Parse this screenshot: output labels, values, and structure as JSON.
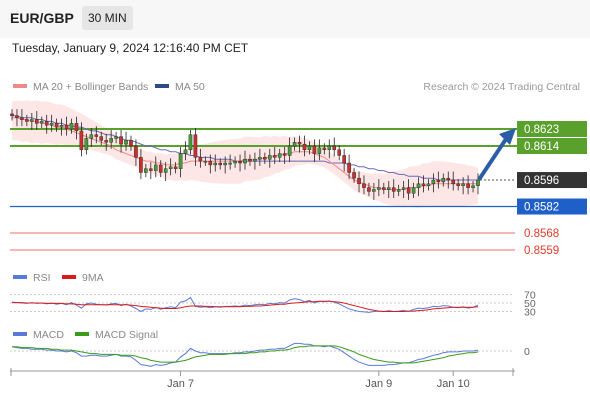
{
  "header": {
    "pair": "EUR/GBP",
    "timeframe": "30 MIN"
  },
  "timestamp": "Tuesday, January 9, 2024 12:16:40 PM CET",
  "legend": {
    "ma20": "MA 20 + Bollinger Bands",
    "ma50": "MA 50",
    "research": "Research © 2024 Trading Central",
    "rsi": "RSI",
    "rsi_ma": "9MA",
    "macd": "MACD",
    "macd_signal": "MACD Signal"
  },
  "colors": {
    "resistance": "#5aa02c",
    "support": "#1f5fc8",
    "target": "#ef8a8a",
    "price": "#333333",
    "ma20": "#f08a8a",
    "ma50": "#6a6ab8",
    "bollinger_fill": "#fde2e2",
    "candle_up": "#4a9a3a",
    "candle_down": "#c83030",
    "arrow": "#2a5ca8"
  },
  "chart_data": [
    {
      "type": "candlestick",
      "title": "EUR/GBP",
      "x_tick_labels": [
        "Jan 7",
        "Jan 9",
        "Jan 10"
      ],
      "ylim": [
        0.8552,
        0.863
      ],
      "levels": [
        {
          "label": "0.8623",
          "value": 0.8623,
          "kind": "resistance"
        },
        {
          "label": "0.8614",
          "value": 0.8614,
          "kind": "resistance"
        },
        {
          "label": "0.8596",
          "value": 0.8596,
          "kind": "price"
        },
        {
          "label": "0.8582",
          "value": 0.8582,
          "kind": "support"
        },
        {
          "label": "0.8568",
          "value": 0.8568,
          "kind": "target"
        },
        {
          "label": "0.8559",
          "value": 0.8559,
          "kind": "target"
        }
      ],
      "close": [
        0.863,
        0.8629,
        0.8628,
        0.8627,
        0.8628,
        0.8626,
        0.8627,
        0.8625,
        0.8626,
        0.8624,
        0.8625,
        0.8623,
        0.8626,
        0.8622,
        0.8612,
        0.8618,
        0.862,
        0.8619,
        0.8617,
        0.8616,
        0.8618,
        0.8619,
        0.8615,
        0.8617,
        0.8614,
        0.8608,
        0.86,
        0.8602,
        0.8601,
        0.8604,
        0.86,
        0.8602,
        0.8603,
        0.8602,
        0.861,
        0.8612,
        0.862,
        0.8608,
        0.8606,
        0.8606,
        0.8604,
        0.8605,
        0.8604,
        0.8605,
        0.8605,
        0.8606,
        0.8605,
        0.8607,
        0.8606,
        0.8607,
        0.8608,
        0.8607,
        0.8609,
        0.8608,
        0.861,
        0.8609,
        0.8614,
        0.8616,
        0.8615,
        0.8612,
        0.8614,
        0.861,
        0.8613,
        0.8612,
        0.8614,
        0.8612,
        0.8609,
        0.8605,
        0.86,
        0.8597,
        0.8594,
        0.8592,
        0.859,
        0.8591,
        0.8592,
        0.8591,
        0.8592,
        0.859,
        0.8591,
        0.8592,
        0.8589,
        0.8592,
        0.8594,
        0.8593,
        0.8594,
        0.8596,
        0.8595,
        0.8597,
        0.8596,
        0.8594,
        0.8593,
        0.8594,
        0.8592,
        0.8593,
        0.8596
      ],
      "series": [
        {
          "name": "MA 20 + Bollinger Bands",
          "values": [
            0.8629,
            0.8629,
            0.8628,
            0.8628,
            0.8627,
            0.8627,
            0.8626,
            0.8626,
            0.8625,
            0.8624,
            0.8624,
            0.8623,
            0.8622,
            0.8621,
            0.862,
            0.8619,
            0.8618,
            0.8617,
            0.8616,
            0.8615,
            0.8614,
            0.8612,
            0.8611,
            0.861,
            0.8609,
            0.8608,
            0.8607,
            0.8606,
            0.8606,
            0.8605,
            0.8605,
            0.8604,
            0.8604,
            0.8604,
            0.8605,
            0.8605,
            0.8606,
            0.8606,
            0.8606,
            0.8606,
            0.8606,
            0.8606,
            0.8606,
            0.8606,
            0.8606,
            0.8606,
            0.8606,
            0.8607,
            0.8607,
            0.8607,
            0.8607,
            0.8608,
            0.8608,
            0.8609,
            0.8609,
            0.861,
            0.861,
            0.8611,
            0.8611,
            0.8611,
            0.8611,
            0.861,
            0.8609,
            0.8608,
            0.8606,
            0.8604,
            0.8602,
            0.86,
            0.8598,
            0.8596,
            0.8595,
            0.8594,
            0.8593,
            0.8592,
            0.8592,
            0.8591,
            0.8591,
            0.8591,
            0.8591,
            0.8591,
            0.8592,
            0.8592,
            0.8592,
            0.8593,
            0.8593,
            0.8594,
            0.8594,
            0.8594,
            0.8594,
            0.8594,
            0.8594,
            0.8594,
            0.8594,
            0.8594,
            0.8594
          ]
        },
        {
          "name": "MA 50",
          "values": [
            0.863,
            0.863,
            0.8629,
            0.8629,
            0.8629,
            0.8628,
            0.8628,
            0.8627,
            0.8627,
            0.8626,
            0.8626,
            0.8625,
            0.8625,
            0.8624,
            0.8624,
            0.8623,
            0.8622,
            0.8622,
            0.8621,
            0.862,
            0.862,
            0.8619,
            0.8618,
            0.8617,
            0.8617,
            0.8616,
            0.8615,
            0.8614,
            0.8614,
            0.8613,
            0.8612,
            0.8612,
            0.8611,
            0.8611,
            0.861,
            0.861,
            0.8609,
            0.8609,
            0.8608,
            0.8608,
            0.8608,
            0.8607,
            0.8607,
            0.8607,
            0.8607,
            0.8606,
            0.8606,
            0.8606,
            0.8606,
            0.8606,
            0.8606,
            0.8606,
            0.8606,
            0.8606,
            0.8606,
            0.8606,
            0.8606,
            0.8606,
            0.8606,
            0.8606,
            0.8606,
            0.8606,
            0.8606,
            0.8606,
            0.8605,
            0.8605,
            0.8605,
            0.8605,
            0.8604,
            0.8604,
            0.8603,
            0.8603,
            0.8602,
            0.8602,
            0.8601,
            0.8601,
            0.86,
            0.86,
            0.8599,
            0.8599,
            0.8598,
            0.8598,
            0.8598,
            0.8597,
            0.8597,
            0.8597,
            0.8596,
            0.8596,
            0.8596,
            0.8596,
            0.8596,
            0.8596,
            0.8596,
            0.8596,
            0.8596
          ]
        }
      ]
    },
    {
      "type": "line",
      "title": "RSI",
      "ylim": [
        20,
        80
      ],
      "reference_lines": [
        70,
        50,
        30
      ],
      "tick_labels": [
        "70",
        "50",
        "30"
      ],
      "series": [
        {
          "name": "RSI",
          "values": [
            52,
            51,
            50,
            49,
            51,
            49,
            50,
            48,
            50,
            47,
            49,
            46,
            51,
            45,
            38,
            48,
            50,
            47,
            46,
            45,
            48,
            49,
            44,
            47,
            43,
            37,
            30,
            36,
            35,
            40,
            35,
            39,
            41,
            39,
            52,
            55,
            63,
            42,
            40,
            41,
            39,
            41,
            40,
            42,
            42,
            43,
            42,
            45,
            44,
            46,
            47,
            46,
            49,
            48,
            51,
            50,
            57,
            60,
            58,
            53,
            56,
            50,
            54,
            53,
            55,
            52,
            48,
            42,
            36,
            33,
            30,
            29,
            28,
            30,
            31,
            30,
            32,
            30,
            31,
            33,
            30,
            35,
            38,
            37,
            39,
            42,
            41,
            44,
            43,
            40,
            39,
            41,
            38,
            40,
            45
          ]
        },
        {
          "name": "9MA",
          "values": [
            51,
            51,
            51,
            50,
            50,
            50,
            50,
            49,
            49,
            49,
            49,
            48,
            48,
            47,
            46,
            46,
            46,
            46,
            46,
            46,
            46,
            46,
            46,
            46,
            45,
            44,
            42,
            41,
            40,
            39,
            38,
            37,
            37,
            37,
            39,
            41,
            43,
            43,
            43,
            42,
            42,
            41,
            41,
            41,
            41,
            41,
            41,
            42,
            42,
            43,
            43,
            44,
            45,
            46,
            47,
            47,
            49,
            50,
            51,
            52,
            53,
            53,
            54,
            54,
            54,
            53,
            52,
            50,
            47,
            44,
            41,
            38,
            35,
            33,
            31,
            30,
            30,
            30,
            30,
            30,
            31,
            31,
            32,
            33,
            34,
            36,
            37,
            38,
            39,
            40,
            40,
            40,
            40,
            40,
            41
          ]
        }
      ]
    },
    {
      "type": "line",
      "title": "MACD",
      "reference_lines": [
        0
      ],
      "tick_labels": [
        "0"
      ],
      "series": [
        {
          "name": "MACD",
          "values": [
            0.5,
            0.4,
            0.3,
            0.3,
            0.2,
            0.2,
            0.2,
            0.1,
            0.1,
            0.0,
            0.0,
            -0.1,
            0.0,
            -0.2,
            -0.6,
            -0.6,
            -0.5,
            -0.5,
            -0.6,
            -0.6,
            -0.5,
            -0.4,
            -0.6,
            -0.6,
            -0.7,
            -1.1,
            -1.6,
            -1.7,
            -1.8,
            -1.6,
            -1.7,
            -1.6,
            -1.4,
            -1.3,
            -0.7,
            -0.3,
            0.3,
            0.0,
            -0.2,
            -0.2,
            -0.3,
            -0.3,
            -0.3,
            -0.3,
            -0.3,
            -0.2,
            -0.2,
            -0.1,
            -0.1,
            0.0,
            0.1,
            0.1,
            0.2,
            0.2,
            0.3,
            0.3,
            0.6,
            0.9,
            0.9,
            0.8,
            0.8,
            0.6,
            0.6,
            0.5,
            0.6,
            0.4,
            0.2,
            -0.2,
            -0.6,
            -1.0,
            -1.3,
            -1.5,
            -1.7,
            -1.7,
            -1.7,
            -1.7,
            -1.6,
            -1.6,
            -1.5,
            -1.4,
            -1.4,
            -1.2,
            -1.0,
            -0.9,
            -0.7,
            -0.5,
            -0.4,
            -0.2,
            -0.1,
            -0.1,
            -0.1,
            0.0,
            0.0,
            0.0,
            0.1
          ]
        },
        {
          "name": "MACD Signal",
          "values": [
            0.5,
            0.5,
            0.4,
            0.4,
            0.4,
            0.3,
            0.3,
            0.3,
            0.2,
            0.2,
            0.1,
            0.1,
            0.1,
            0.0,
            -0.1,
            -0.2,
            -0.3,
            -0.3,
            -0.4,
            -0.4,
            -0.4,
            -0.4,
            -0.5,
            -0.5,
            -0.5,
            -0.6,
            -0.8,
            -0.9,
            -1.1,
            -1.2,
            -1.3,
            -1.3,
            -1.3,
            -1.3,
            -1.2,
            -1.1,
            -0.9,
            -0.7,
            -0.6,
            -0.5,
            -0.4,
            -0.4,
            -0.4,
            -0.4,
            -0.3,
            -0.3,
            -0.3,
            -0.3,
            -0.2,
            -0.2,
            -0.1,
            -0.1,
            0.0,
            0.0,
            0.1,
            0.1,
            0.2,
            0.4,
            0.5,
            0.5,
            0.6,
            0.6,
            0.6,
            0.6,
            0.6,
            0.6,
            0.5,
            0.3,
            0.1,
            -0.1,
            -0.4,
            -0.6,
            -0.8,
            -1.0,
            -1.1,
            -1.2,
            -1.3,
            -1.3,
            -1.4,
            -1.4,
            -1.4,
            -1.4,
            -1.3,
            -1.2,
            -1.1,
            -1.0,
            -0.9,
            -0.8,
            -0.6,
            -0.5,
            -0.4,
            -0.3,
            -0.2,
            -0.2,
            -0.1
          ]
        }
      ]
    }
  ]
}
